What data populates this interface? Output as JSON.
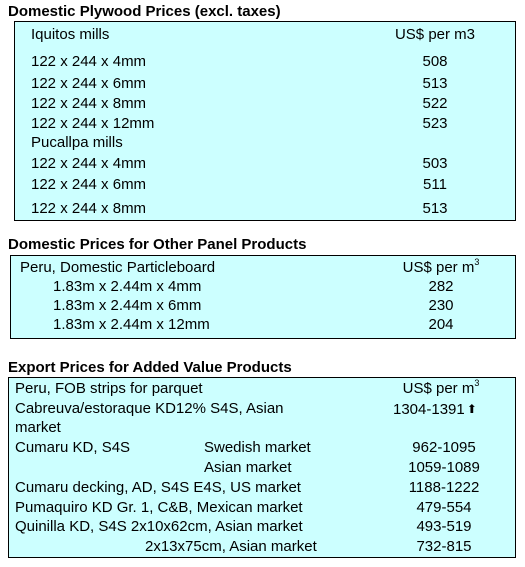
{
  "section1": {
    "title": "Domestic Plywood Prices (excl. taxes)",
    "group1_label": "Iquitos mills",
    "unit_header": "US$ per m3",
    "iquitos_rows": [
      {
        "size": "122 x 244 x 4mm",
        "price": "508"
      },
      {
        "size": "122 x 244 x 6mm",
        "price": "513"
      },
      {
        "size": "122 x 244 x 8mm",
        "price": "522"
      },
      {
        "size": "122 x 244 x 12mm",
        "price": "523"
      }
    ],
    "group2_label": "Pucallpa mills",
    "pucallpa_rows": [
      {
        "size": "122 x 244 x 4mm",
        "price": "503"
      },
      {
        "size": "122 x 244 x 6mm",
        "price": "511"
      },
      {
        "size": "122 x 244 x 8mm",
        "price": "513"
      }
    ]
  },
  "section2": {
    "title": "Domestic Prices for Other Panel Products",
    "product_label": "Peru, Domestic Particleboard",
    "unit_header": "US$ per m",
    "unit_sup": "3",
    "rows": [
      {
        "size": "1.83m x 2.44m x 4mm",
        "price": "282"
      },
      {
        "size": "1.83m x 2.44m x 6mm",
        "price": "230"
      },
      {
        "size": "1.83m x 2.44m x 12mm",
        "price": "204"
      }
    ]
  },
  "section3": {
    "title": "Export Prices for Added Value Products",
    "product_label": "Peru, FOB strips for parquet",
    "unit_header": "US$ per m",
    "unit_sup": "3",
    "row1_line1": "Cabreuva/estoraque KD12% S4S, Asian",
    "row1_line2": "market",
    "row1_price": "1304-1391",
    "row1_icon": "up-arrow-icon",
    "row2_product": "Cumaru KD, S4S",
    "row2_market": "Swedish market",
    "row2_price": "962-1095",
    "row3_market": "Asian market",
    "row3_price": "1059-1089",
    "row4_product": "Cumaru decking, AD, S4S E4S,  US market",
    "row4_price": "1188-1222",
    "row5_product": "Pumaquiro KD Gr. 1, C&B,  Mexican market",
    "row5_price": "479-554",
    "row6_product": "Quinilla KD, S4S 2x10x62cm,  Asian market",
    "row6_price": "493-519",
    "row7_product": "2x13x75cm, Asian market",
    "row7_price": "732-815"
  }
}
